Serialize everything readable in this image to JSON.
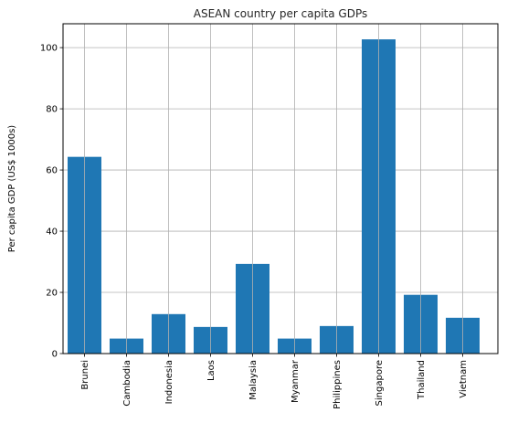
{
  "chart_data": {
    "type": "bar",
    "title": "ASEAN country per capita GDPs",
    "xlabel": "",
    "ylabel": "Per capita GDP (US$ 1000s)",
    "categories": [
      "Brunei",
      "Cambodia",
      "Indonesia",
      "Laos",
      "Malaysia",
      "Myanmar",
      "Philippines",
      "Singapore",
      "Thailand",
      "Vietnam"
    ],
    "values": [
      64.3,
      4.9,
      12.9,
      8.7,
      29.3,
      4.9,
      9.0,
      102.7,
      19.2,
      11.7
    ],
    "ylim": [
      0,
      107.8
    ],
    "yticks": [
      0,
      20,
      40,
      60,
      80,
      100
    ],
    "grid": true,
    "colors": {
      "bar": "#1f77b4",
      "grid": "#b0b0b0",
      "axis": "#000000"
    }
  }
}
